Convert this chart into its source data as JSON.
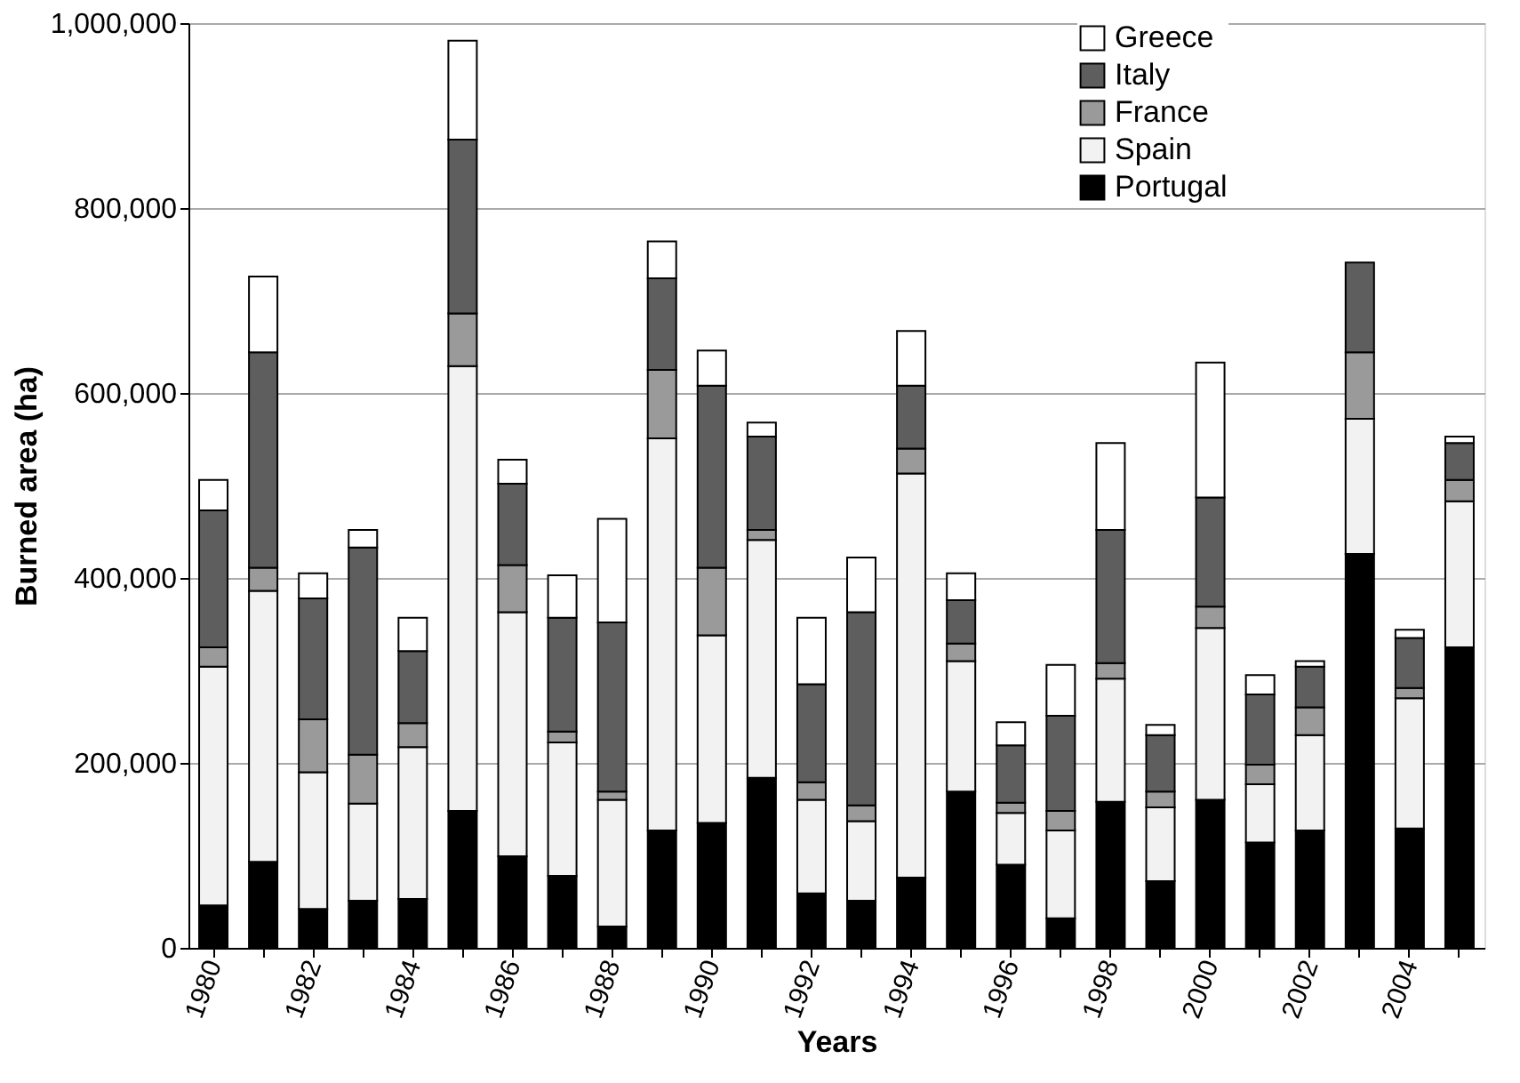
{
  "chart_data": {
    "type": "bar",
    "stacked": true,
    "xlabel": "Years",
    "ylabel": "Burned area (ha)",
    "categories": [
      "1980",
      null,
      "1982",
      null,
      "1984",
      null,
      "1986",
      null,
      "1988",
      null,
      "1990",
      null,
      "1992",
      null,
      "1994",
      null,
      "1996",
      null,
      "1998",
      null,
      "2000",
      null,
      "2002",
      null,
      "2004",
      null
    ],
    "series": [
      {
        "name": "Portugal",
        "color": "#000000",
        "values": [
          46000,
          93000,
          42000,
          51000,
          53000,
          148000,
          99000,
          78000,
          23000,
          127000,
          135000,
          184000,
          59000,
          51000,
          76000,
          169000,
          90000,
          32000,
          158000,
          72000,
          160000,
          114000,
          127000,
          426000,
          129000,
          325000
        ]
      },
      {
        "name": "Spain",
        "color": "#f2f2f2",
        "values": [
          258000,
          293000,
          148000,
          105000,
          164000,
          481000,
          264000,
          144000,
          137000,
          424000,
          203000,
          257000,
          101000,
          86000,
          437000,
          141000,
          56000,
          95000,
          133000,
          80000,
          186000,
          63000,
          103000,
          146000,
          141000,
          158000
        ]
      },
      {
        "name": "France",
        "color": "#9a9a9a",
        "values": [
          21000,
          25000,
          57000,
          53000,
          26000,
          57000,
          51000,
          12000,
          9000,
          74000,
          73000,
          11000,
          19000,
          17000,
          27000,
          19000,
          11000,
          21000,
          17000,
          17000,
          23000,
          21000,
          30000,
          72000,
          11000,
          23000
        ]
      },
      {
        "name": "Italy",
        "color": "#5e5e5e",
        "values": [
          148000,
          233000,
          131000,
          224000,
          78000,
          188000,
          88000,
          123000,
          183000,
          99000,
          197000,
          101000,
          106000,
          209000,
          68000,
          47000,
          62000,
          103000,
          144000,
          61000,
          118000,
          76000,
          44000,
          97000,
          54000,
          40000
        ]
      },
      {
        "name": "Greece",
        "color": "#ffffff",
        "values": [
          33000,
          82000,
          27000,
          19000,
          36000,
          107000,
          26000,
          46000,
          112000,
          40000,
          38000,
          15000,
          72000,
          59000,
          59000,
          29000,
          25000,
          55000,
          94000,
          11000,
          146000,
          21000,
          6000,
          null,
          9000,
          7000
        ]
      }
    ],
    "ylim": [
      0,
      1000000
    ],
    "yticks": [
      {
        "value": 0,
        "label": "0"
      },
      {
        "value": 200000,
        "label": "200,000"
      },
      {
        "value": 400000,
        "label": "400,000"
      },
      {
        "value": 600000,
        "label": "600,000"
      },
      {
        "value": 800000,
        "label": "800,000"
      },
      {
        "value": 1000000,
        "label": "1,000,000"
      }
    ],
    "grid": "y",
    "legend": "top right"
  }
}
